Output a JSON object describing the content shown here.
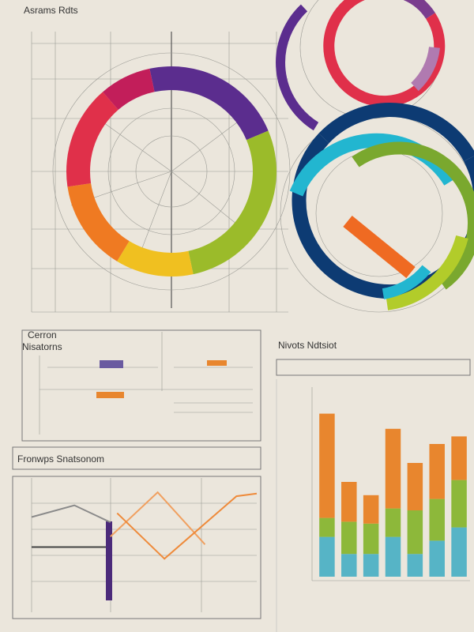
{
  "header": {
    "title": "Asrams Rdts"
  },
  "panel": {
    "title": "Cerron",
    "subtitle": "Nisatorns"
  },
  "chart_data": [
    {
      "type": "donut",
      "values": [
        22,
        28,
        12,
        14,
        16,
        8
      ],
      "colors": [
        "#5b2d8e",
        "#9bbb2a",
        "#f0c020",
        "#ef7a22",
        "#e0304a",
        "#c21e5a"
      ]
    },
    {
      "type": "bar",
      "title": "Nivots Ndtsiot",
      "ylim": [
        0,
        100
      ],
      "series": [
        {
          "color": "#56b4c6",
          "values": [
            21,
            12,
            12,
            21,
            12,
            19,
            26
          ]
        },
        {
          "color": "#8db83a",
          "values": [
            10,
            17,
            16,
            15,
            23,
            22,
            25
          ]
        },
        {
          "color": "#e8862e",
          "values": [
            55,
            21,
            15,
            42,
            25,
            29,
            23
          ]
        }
      ]
    },
    {
      "type": "line",
      "title": "Fronwps Snatsonom",
      "xlim": [
        0,
        100
      ],
      "ylim": [
        0,
        100
      ],
      "series": [
        {
          "color": "#8a8a8a",
          "x": [
            0,
            19,
            35
          ],
          "values": [
            70,
            79,
            66
          ]
        },
        {
          "color": "#444444",
          "x": [
            0,
            33
          ],
          "values": [
            47,
            47
          ]
        },
        {
          "color": "#f0a060",
          "x": [
            35,
            56,
            77
          ],
          "values": [
            55,
            89,
            49
          ]
        },
        {
          "color": "#ee8a3a",
          "x": [
            38,
            59,
            91,
            100
          ],
          "values": [
            73,
            38,
            86,
            88
          ]
        }
      ]
    }
  ]
}
